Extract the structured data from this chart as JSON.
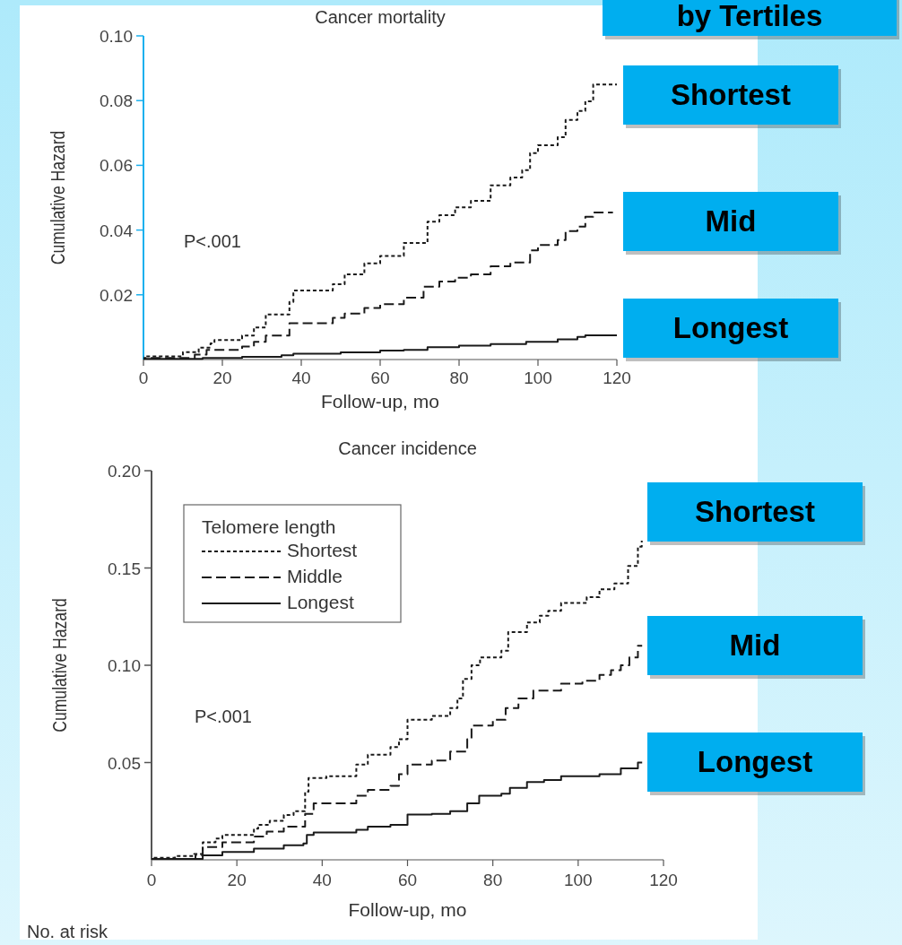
{
  "chart_data": [
    {
      "type": "step",
      "title": "Cancer mortality",
      "xlabel": "Follow-up, mo",
      "ylabel": "Cumulative Hazard",
      "xlim": [
        0,
        120
      ],
      "ylim": [
        0,
        0.1
      ],
      "xticks": [
        0,
        20,
        40,
        60,
        80,
        100,
        120
      ],
      "yticks": [
        {
          "value": 0.02,
          "label": "0.02"
        },
        {
          "value": 0.04,
          "label": "0.04"
        },
        {
          "value": 0.06,
          "label": "0.06"
        },
        {
          "value": 0.08,
          "label": "0.08"
        },
        {
          "value": 0.1,
          "label": "0.10"
        }
      ],
      "grid": false,
      "legend": false,
      "annotations": [
        "P<.001",
        "by Tertiles",
        "Shortest",
        "Mid",
        "Longest"
      ],
      "series": [
        {
          "color": "#1a1a1a",
          "line_style": "dotted",
          "x": [
            0,
            10,
            14,
            17,
            18,
            25,
            28,
            31,
            37,
            38,
            48,
            51,
            56,
            60,
            66,
            72,
            75,
            79,
            83,
            88,
            93,
            96,
            98,
            100,
            105,
            107,
            110,
            112,
            114,
            120
          ],
          "values": [
            0.001,
            0.0023,
            0.0037,
            0.005,
            0.006,
            0.0074,
            0.0099,
            0.0139,
            0.0178,
            0.0213,
            0.0233,
            0.0263,
            0.0297,
            0.032,
            0.036,
            0.0426,
            0.0446,
            0.047,
            0.049,
            0.0538,
            0.0562,
            0.0585,
            0.0638,
            0.0662,
            0.0687,
            0.074,
            0.0768,
            0.0798,
            0.085,
            0.085
          ]
        },
        {
          "color": "#1a1a1a",
          "line_style": "dashed",
          "x": [
            0,
            13,
            16,
            25,
            28,
            31,
            37,
            48,
            51,
            56,
            60,
            66,
            71,
            75,
            79,
            83,
            88,
            93,
            98,
            100,
            105,
            107,
            110,
            112,
            114,
            119
          ],
          "values": [
            0.0005,
            0.0015,
            0.003,
            0.004,
            0.0055,
            0.0074,
            0.0112,
            0.0129,
            0.0142,
            0.0159,
            0.0171,
            0.0191,
            0.0225,
            0.0241,
            0.0253,
            0.0263,
            0.0288,
            0.03,
            0.0337,
            0.0354,
            0.0369,
            0.0397,
            0.0411,
            0.0441,
            0.0454,
            0.0454
          ]
        },
        {
          "color": "#1a1a1a",
          "line_style": "solid",
          "x": [
            0,
            15,
            25,
            35,
            38,
            50,
            60,
            66,
            72,
            80,
            88,
            97,
            105,
            110,
            112,
            120
          ],
          "values": [
            0.0002,
            0.0005,
            0.0008,
            0.0013,
            0.0018,
            0.0022,
            0.0028,
            0.003,
            0.0038,
            0.0043,
            0.0048,
            0.0055,
            0.0062,
            0.007,
            0.0075,
            0.0075
          ]
        }
      ]
    },
    {
      "type": "step",
      "title": "Cancer incidence",
      "xlabel": "Follow-up, mo",
      "ylabel": "Cumulative Hazard",
      "xlim": [
        0,
        120
      ],
      "ylim": [
        0,
        0.2
      ],
      "xticks": [
        0,
        20,
        40,
        60,
        80,
        100,
        120
      ],
      "yticks": [
        {
          "value": 0.05,
          "label": "0.05"
        },
        {
          "value": 0.1,
          "label": "0.10"
        },
        {
          "value": 0.15,
          "label": "0.15"
        },
        {
          "value": 0.2,
          "label": "0.20"
        }
      ],
      "grid": false,
      "legend": "top left",
      "legend_title": "Telomere length",
      "annotations": [
        "P<.001",
        "Shortest",
        "Mid",
        "Longest",
        "No. at risk"
      ],
      "series": [
        {
          "name": "Shortest",
          "color": "#1a1a1a",
          "line_style": "dotted",
          "x": [
            0,
            5.5,
            10,
            12,
            15,
            16.6,
            24,
            25,
            27.7,
            31,
            33.3,
            36,
            36.8,
            41,
            48,
            50.7,
            56,
            58,
            60,
            65.7,
            70,
            71.7,
            73,
            75,
            77,
            82,
            83.6,
            88,
            91,
            93,
            96,
            102,
            105,
            108.5,
            111.7,
            114,
            114.9
          ],
          "values": [
            0.001,
            0.002,
            0.003,
            0.009,
            0.011,
            0.0128,
            0.016,
            0.018,
            0.02,
            0.023,
            0.025,
            0.035,
            0.042,
            0.043,
            0.049,
            0.054,
            0.058,
            0.062,
            0.072,
            0.074,
            0.078,
            0.083,
            0.093,
            0.1,
            0.104,
            0.1075,
            0.117,
            0.122,
            0.1255,
            0.128,
            0.132,
            0.135,
            0.139,
            0.142,
            0.151,
            0.161,
            0.164
          ]
        },
        {
          "name": "Middle",
          "color": "#1a1a1a",
          "line_style": "dashed",
          "x": [
            0,
            10.3,
            12,
            16.6,
            24,
            27,
            31,
            36,
            38,
            48,
            50.7,
            56,
            58,
            60,
            65.7,
            70,
            74,
            75,
            80,
            83,
            86,
            89.5,
            96,
            101,
            105,
            107.7,
            110,
            112,
            114,
            115
          ],
          "values": [
            0.0005,
            0.0023,
            0.0066,
            0.009,
            0.012,
            0.0145,
            0.017,
            0.0236,
            0.029,
            0.033,
            0.036,
            0.038,
            0.044,
            0.049,
            0.051,
            0.0556,
            0.062,
            0.069,
            0.072,
            0.078,
            0.083,
            0.087,
            0.0905,
            0.092,
            0.095,
            0.0975,
            0.1,
            0.104,
            0.11,
            0.11
          ]
        },
        {
          "name": "Longest",
          "color": "#1a1a1a",
          "line_style": "solid",
          "x": [
            0,
            12,
            16.6,
            24,
            31,
            35.6,
            36.4,
            38,
            48,
            50.7,
            56,
            60,
            65.7,
            70,
            74,
            76.8,
            82,
            84,
            88,
            92,
            96,
            105,
            110,
            114,
            115
          ],
          "values": [
            0.0005,
            0.0023,
            0.004,
            0.0058,
            0.0075,
            0.0084,
            0.0128,
            0.014,
            0.0154,
            0.017,
            0.018,
            0.0233,
            0.0236,
            0.025,
            0.029,
            0.033,
            0.034,
            0.037,
            0.04,
            0.041,
            0.043,
            0.044,
            0.047,
            0.05,
            0.05
          ]
        }
      ]
    }
  ]
}
